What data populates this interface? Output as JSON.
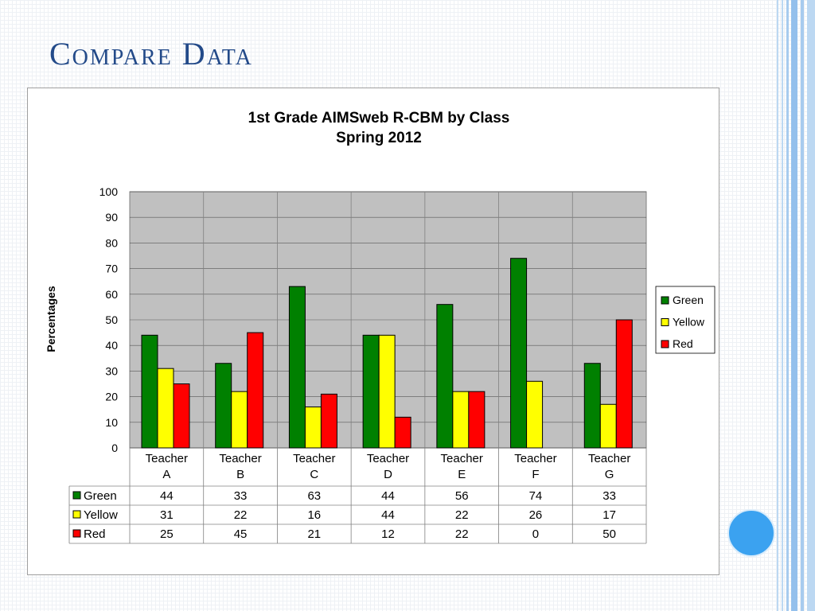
{
  "slide": {
    "title": "Compare Data"
  },
  "colors": {
    "Green": "#008000",
    "Yellow": "#ffff00",
    "Red": "#ff0000",
    "plot_bg": "#c0c0c0",
    "title_color": "#234a89"
  },
  "chart_data": {
    "type": "bar",
    "title": "1st Grade AIMSweb R-CBM by Class",
    "subtitle": "Spring 2012",
    "ylabel": "Percentages",
    "xlabel": "",
    "ylim": [
      0,
      100
    ],
    "yticks": [
      "0",
      "10",
      "20",
      "30",
      "40",
      "50",
      "60",
      "70",
      "80",
      "90",
      "100"
    ],
    "categories": [
      [
        "Teacher",
        "A"
      ],
      [
        "Teacher",
        "B"
      ],
      [
        "Teacher",
        "C"
      ],
      [
        "Teacher",
        "D"
      ],
      [
        "Teacher",
        "E"
      ],
      [
        "Teacher",
        "F"
      ],
      [
        "Teacher",
        "G"
      ]
    ],
    "series": [
      {
        "name": "Green",
        "values": [
          44,
          33,
          63,
          44,
          56,
          74,
          33
        ]
      },
      {
        "name": "Yellow",
        "values": [
          31,
          22,
          16,
          44,
          22,
          26,
          17
        ]
      },
      {
        "name": "Red",
        "values": [
          25,
          45,
          21,
          12,
          22,
          0,
          50
        ]
      }
    ],
    "grid": true,
    "legend": "right",
    "data_table": true
  }
}
